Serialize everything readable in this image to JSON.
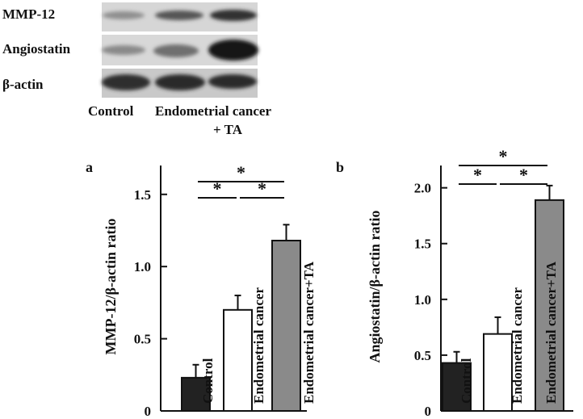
{
  "blot": {
    "rows": [
      "MMP-12",
      "Angiostatin",
      "β-actin"
    ],
    "lanes": [
      "Control",
      "Endometrial cancer",
      "+ TA"
    ]
  },
  "chart_data": [
    {
      "type": "bar",
      "panel": "a",
      "ylabel": "MMP-12/β-actin ratio",
      "ylim": [
        0,
        1.7
      ],
      "yticks": [
        0,
        0.5,
        1.0,
        1.5
      ],
      "ytick_labels": [
        "0",
        "0.5",
        "1.0",
        "1.5"
      ],
      "categories": [
        "Control",
        "Endometrial cancer",
        "Endometrial cancer+TA"
      ],
      "values": [
        0.23,
        0.7,
        1.18
      ],
      "errors": [
        0.09,
        0.1,
        0.11
      ],
      "colors": [
        "#222222",
        "#ffffff",
        "#8a8a8a"
      ],
      "significance": [
        {
          "from": 0,
          "to": 1,
          "label": "*"
        },
        {
          "from": 1,
          "to": 2,
          "label": "*"
        },
        {
          "from": 0,
          "to": 2,
          "label": "*"
        }
      ]
    },
    {
      "type": "bar",
      "panel": "b",
      "ylabel": "Angiostatin/β-actin ratio",
      "ylim": [
        0,
        2.2
      ],
      "yticks": [
        0,
        0.5,
        1.0,
        1.5,
        2.0
      ],
      "ytick_labels": [
        "0",
        "0.5",
        "1.0",
        "1.5",
        "2.0"
      ],
      "categories": [
        "Control",
        "Endometrial cancer",
        "Endometrial cancer+TA"
      ],
      "values": [
        0.43,
        0.69,
        1.89
      ],
      "errors": [
        0.1,
        0.15,
        0.13
      ],
      "colors": [
        "#222222",
        "#ffffff",
        "#8a8a8a"
      ],
      "significance": [
        {
          "from": 0,
          "to": 1,
          "label": "*"
        },
        {
          "from": 1,
          "to": 2,
          "label": "*"
        },
        {
          "from": 0,
          "to": 2,
          "label": "*"
        }
      ]
    }
  ]
}
